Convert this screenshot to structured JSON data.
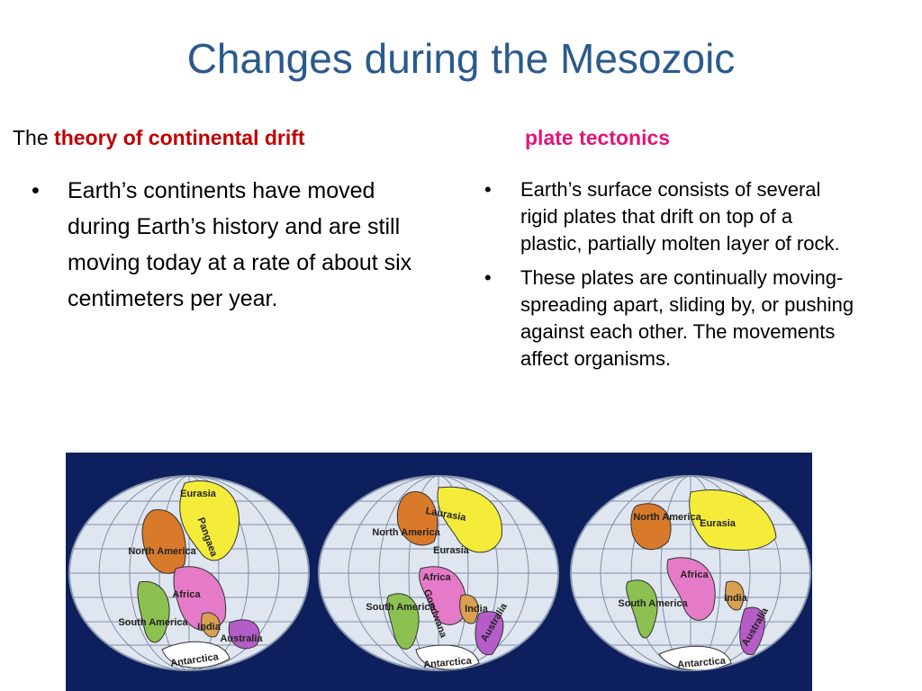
{
  "title": "Changes during the Mesozoic",
  "left": {
    "heading_prefix": "The",
    "heading": "theory of continental drift",
    "bullets": [
      "Earth’s continents have moved during Earth’s history and are still moving today at a rate of about six centimeters per year."
    ]
  },
  "right": {
    "heading": "plate tectonics",
    "bullets": [
      "Earth’s surface consists of several rigid plates that drift on top of a plastic, partially molten layer of rock.",
      "These plates are continually moving-spreading apart, sliding by, or pushing against each other.  The movements affect organisms."
    ]
  },
  "maps": [
    {
      "labels": [
        "Eurasia",
        "Pangaea",
        "North America",
        "Africa",
        "South America",
        "India",
        "Australia",
        "Antarctica"
      ]
    },
    {
      "labels": [
        "Laurasia",
        "North America",
        "Eurasia",
        "Africa",
        "Gondwana",
        "South America",
        "India",
        "Australia",
        "Antarctica"
      ]
    },
    {
      "labels": [
        "North America",
        "Eurasia",
        "Africa",
        "South America",
        "India",
        "Australia",
        "Antarctica"
      ]
    }
  ]
}
